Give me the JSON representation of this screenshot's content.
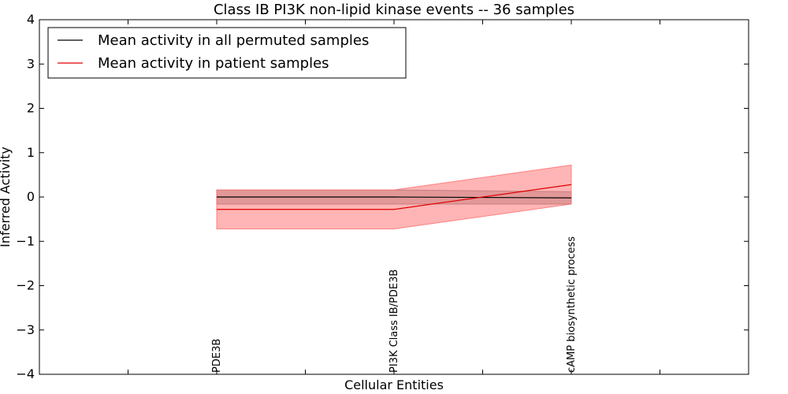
{
  "chart_data": {
    "type": "line",
    "title": "Class IB PI3K non-lipid kinase events -- 36 samples",
    "xlabel": "Cellular Entities",
    "ylabel": "Inferred Activity",
    "ylim": [
      -4,
      4
    ],
    "xlim": [
      0,
      4
    ],
    "yticks": [
      4,
      3,
      2,
      1,
      0,
      -1,
      -2,
      -3,
      -4
    ],
    "ytick_labels": [
      "4",
      "3",
      "2",
      "1",
      "0",
      "−1",
      "−2",
      "−3",
      "−4"
    ],
    "x_minor_ticks": [
      0.5,
      1.5,
      2.5,
      3.5
    ],
    "categories": [
      "PDE3B",
      "PI3K Class IB/PDE3B",
      "cAMP biosynthetic process"
    ],
    "category_x": [
      1,
      2,
      3
    ],
    "series": [
      {
        "name": "Mean activity in all permuted samples",
        "color": "#000000",
        "values": [
          0.0,
          0.0,
          -0.02
        ],
        "band_upper": [
          0.16,
          0.16,
          0.12
        ],
        "band_lower": [
          -0.16,
          -0.16,
          -0.16
        ],
        "band_color": "#7f7f7f"
      },
      {
        "name": "Mean activity in patient samples",
        "color": "#e00000",
        "values": [
          -0.28,
          -0.28,
          0.28
        ],
        "band_upper": [
          0.16,
          0.16,
          0.72
        ],
        "band_lower": [
          -0.72,
          -0.72,
          -0.16
        ],
        "band_color": "#ff6b6b"
      }
    ],
    "legend_position": "top-left",
    "grid": false
  }
}
